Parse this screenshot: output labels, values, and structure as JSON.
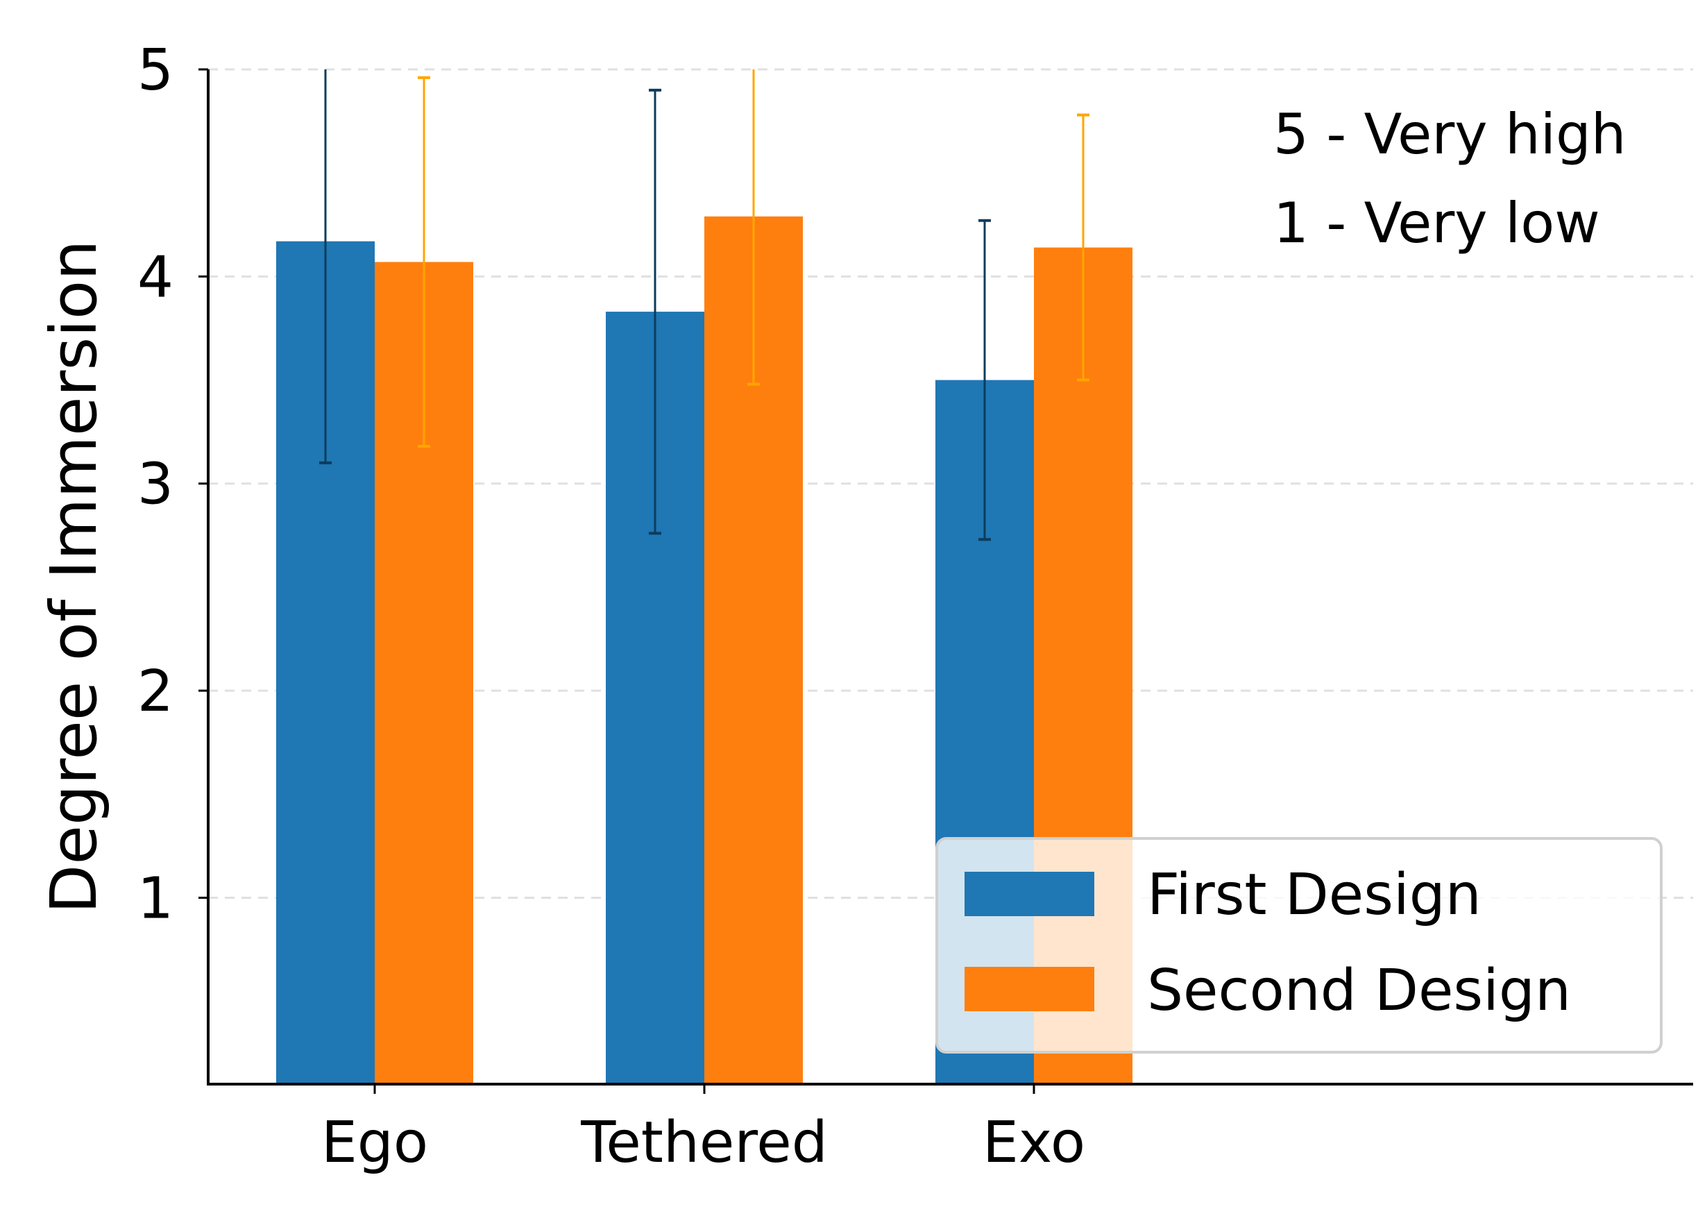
{
  "chart_data": {
    "type": "bar",
    "title": "",
    "xlabel": "",
    "ylabel": "Degree of Immersion",
    "categories": [
      "Ego",
      "Tethered",
      "Exo"
    ],
    "series": [
      {
        "name": "First Design",
        "color": "#1f77b4",
        "errcolor": "#0b3c5d",
        "values": [
          4.17,
          3.83,
          3.5
        ],
        "err": [
          1.07,
          1.07,
          0.77
        ]
      },
      {
        "name": "Second Design",
        "color": "#ff7f0e",
        "errcolor": "#ffa500",
        "values": [
          4.07,
          4.29,
          4.14
        ],
        "err": [
          0.89,
          0.81,
          0.64
        ]
      }
    ],
    "ylim": [
      0.1,
      5.0
    ],
    "yticks": [
      1,
      2,
      3,
      4,
      5
    ],
    "grid": true,
    "legend": {
      "placement": "lower-right",
      "entries": [
        "First Design",
        "Second Design"
      ]
    },
    "annotations": [
      "5 - Very high",
      "1 - Very low"
    ]
  }
}
